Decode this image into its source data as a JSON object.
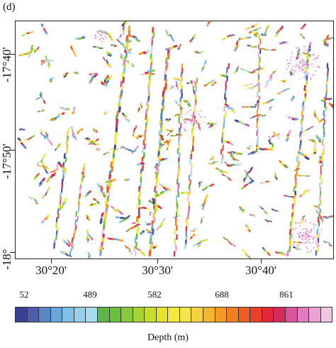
{
  "panel_label": "(d)",
  "lat_labels": [
    "-17°40'",
    "-17°50'",
    "-18°"
  ],
  "lon_labels": [
    "30°20'",
    "30°30'",
    "30°40'"
  ],
  "colorbar": {
    "tick_labels": [
      "52",
      "489",
      "582",
      "688",
      "861"
    ],
    "title": "Depth (m)",
    "colors": [
      "#3b3f98",
      "#4a5fae",
      "#5a86c4",
      "#6aa6d8",
      "#7fc0e6",
      "#94d0ec",
      "#a6dbf0",
      "#5fb34a",
      "#6bbf3f",
      "#86c93a",
      "#a9d334",
      "#c9dd2d",
      "#e6e42a",
      "#f3e93a",
      "#f7e34a",
      "#f7d23c",
      "#f5b52e",
      "#f29c26",
      "#ef7f22",
      "#ec5f24",
      "#e8402a",
      "#e02a3a",
      "#d62a5c",
      "#d8559a",
      "#e27cc0",
      "#e9a3d3",
      "#f1c6e3"
    ]
  },
  "map": {
    "region": "lineament depth map",
    "lon_range": [
      30.28,
      30.79
    ],
    "lat_range": [
      -18.0,
      -17.62
    ]
  }
}
